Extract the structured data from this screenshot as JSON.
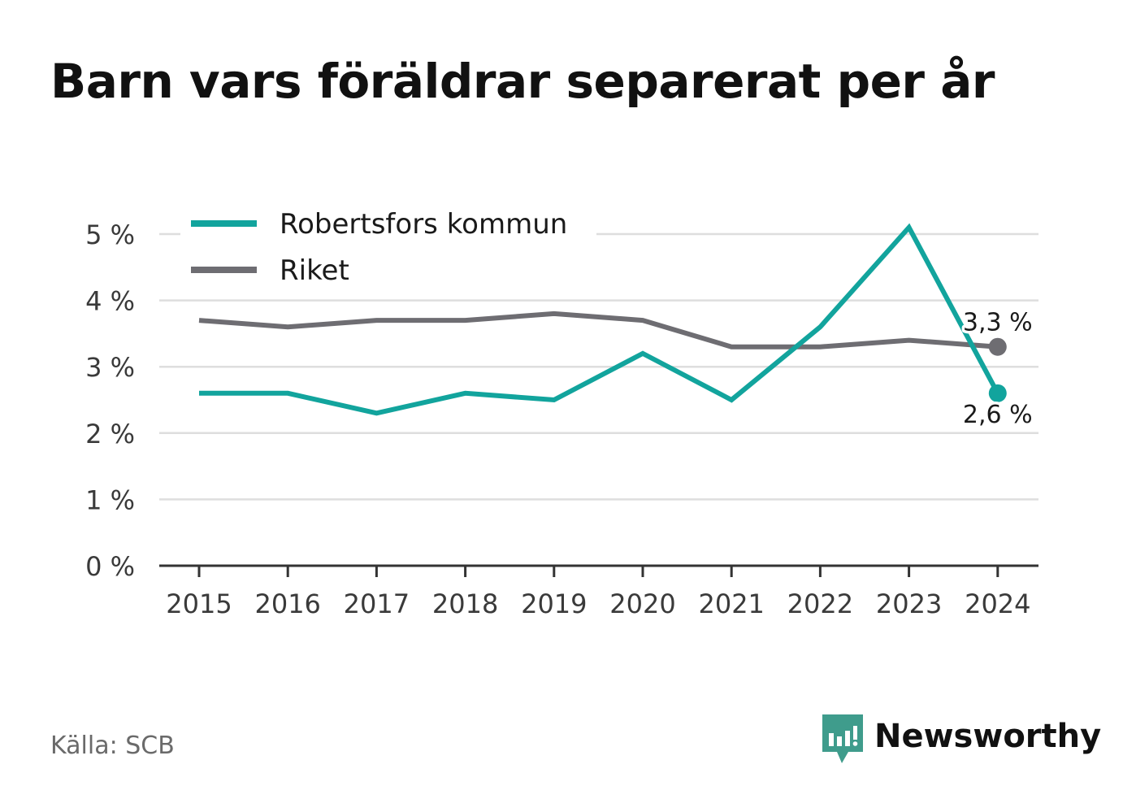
{
  "header": {
    "title": "Barn vars föräldrar separerat per år"
  },
  "footer": {
    "source": "Källa: SCB",
    "brand": "Newsworthy"
  },
  "colors": {
    "robertsfors": "#12a49d",
    "riket": "#6e6d72",
    "grid": "#dedede",
    "axis": "#333333",
    "tick_text": "#3a3a3a",
    "brand": "#3f9c8c"
  },
  "chart_data": {
    "type": "line",
    "x": [
      "2015",
      "2016",
      "2017",
      "2018",
      "2019",
      "2020",
      "2021",
      "2022",
      "2023",
      "2024"
    ],
    "series": [
      {
        "name": "Robertsfors kommun",
        "color": "#12a49d",
        "values": [
          2.6,
          2.6,
          2.3,
          2.6,
          2.5,
          3.2,
          2.5,
          3.6,
          5.1,
          2.6
        ],
        "end_label": "2,6 %"
      },
      {
        "name": "Riket",
        "color": "#6e6d72",
        "values": [
          3.7,
          3.6,
          3.7,
          3.7,
          3.8,
          3.7,
          3.3,
          3.3,
          3.4,
          3.3
        ],
        "end_label": "3,3 %"
      }
    ],
    "ylim": [
      0,
      5
    ],
    "yticks": [
      0,
      1,
      2,
      3,
      4,
      5
    ],
    "ytick_labels": [
      "0 %",
      "1 %",
      "2 %",
      "3 %",
      "4 %",
      "5 %"
    ],
    "grid": true,
    "legend": "top-left",
    "xlabel": "",
    "ylabel": ""
  }
}
